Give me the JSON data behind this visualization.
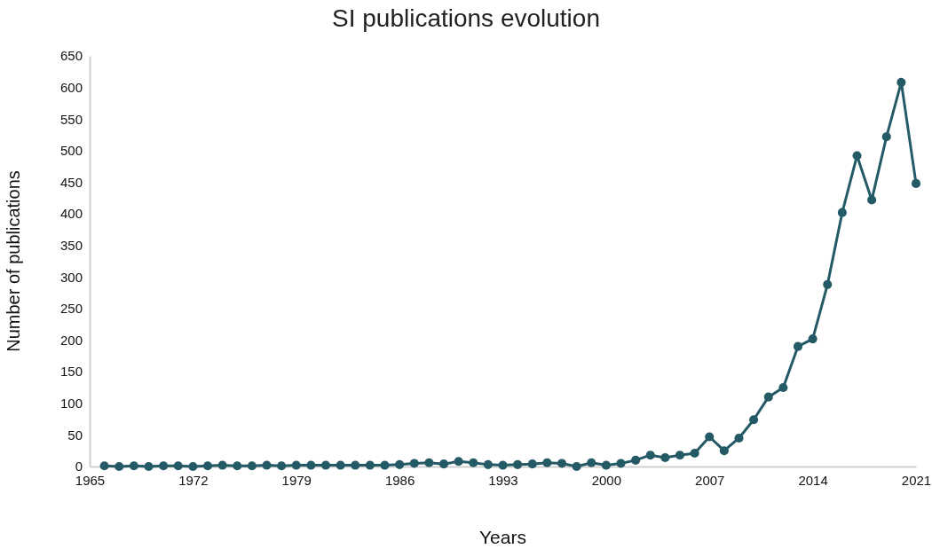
{
  "chart_data": {
    "type": "line",
    "title": "SI publications evolution",
    "xlabel": "Years",
    "ylabel": "Number of publications",
    "x": [
      1966,
      1967,
      1968,
      1969,
      1970,
      1971,
      1972,
      1973,
      1974,
      1975,
      1976,
      1977,
      1978,
      1979,
      1980,
      1981,
      1982,
      1983,
      1984,
      1985,
      1986,
      1987,
      1988,
      1989,
      1990,
      1991,
      1992,
      1993,
      1994,
      1995,
      1996,
      1997,
      1998,
      1999,
      2000,
      2001,
      2002,
      2003,
      2004,
      2005,
      2006,
      2007,
      2008,
      2009,
      2010,
      2011,
      2012,
      2013,
      2014,
      2015,
      2016,
      2017,
      2018,
      2019,
      2020,
      2021
    ],
    "series": [
      {
        "color": "#245a66",
        "values": [
          1,
          0,
          1,
          0,
          1,
          1,
          0,
          1,
          2,
          1,
          1,
          2,
          1,
          2,
          2,
          2,
          2,
          2,
          2,
          2,
          3,
          5,
          6,
          4,
          8,
          6,
          3,
          2,
          3,
          4,
          6,
          5,
          0,
          6,
          2,
          5,
          10,
          18,
          14,
          18,
          21,
          47,
          25,
          45,
          74,
          110,
          125,
          190,
          202,
          288,
          402,
          492,
          422,
          522,
          608,
          448
        ]
      }
    ],
    "xlim": [
      1965,
      2021
    ],
    "xticks": [
      1965,
      1972,
      1979,
      1986,
      1993,
      2000,
      2007,
      2014,
      2021
    ],
    "ylim": [
      0,
      650
    ],
    "yticks": [
      0,
      50,
      100,
      150,
      200,
      250,
      300,
      350,
      400,
      450,
      500,
      550,
      600,
      650
    ],
    "grid": false,
    "marker": "circle",
    "line_style": "solid"
  }
}
